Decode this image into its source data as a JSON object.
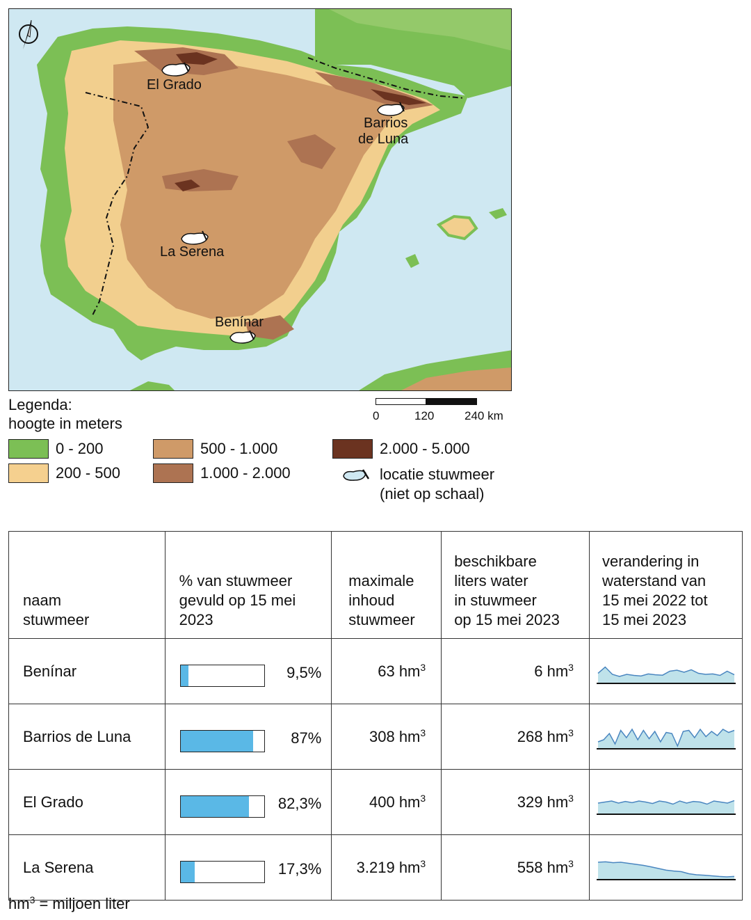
{
  "map": {
    "places": [
      "El Grado",
      "Barrios",
      "de Luna",
      "La Serena",
      "Benínar"
    ],
    "colors": {
      "sea": "#cfe8f2",
      "elev_0_200": "#7cbf55",
      "elev_200_500": "#f2cf8e",
      "elev_500_1000": "#cf9a68",
      "elev_1000_2000": "#ad7352",
      "elev_2000_5000": "#6b3320",
      "reservoir": "#ffffff"
    },
    "north_arrow": "north-arrow-icon"
  },
  "scale": {
    "l0": "0",
    "l1": "120",
    "l2": "240 km"
  },
  "legend": {
    "title": "Legenda:",
    "subtitle": "hoogte in meters",
    "items": [
      {
        "label": "0 - 200",
        "color": "#7cbf55"
      },
      {
        "label": "200 - 500",
        "color": "#f5d08f"
      },
      {
        "label": "500 - 1.000",
        "color": "#cf9a68"
      },
      {
        "label": "1.000 - 2.000",
        "color": "#ad7352"
      },
      {
        "label": "2.000 - 5.000",
        "color": "#6b3320"
      }
    ],
    "reservoir_label_1": "locatie stuwmeer",
    "reservoir_label_2": "(niet op schaal)"
  },
  "table": {
    "headers": {
      "naam": [
        "naam",
        "stuwmeer"
      ],
      "pct": [
        "% van stuwmeer",
        "gevuld op 15 mei",
        "2023"
      ],
      "max": [
        "maximale",
        "inhoud",
        "stuwmeer"
      ],
      "liters": [
        "beschikbare",
        "liters water",
        "in stuwmeer",
        "op 15 mei 2023"
      ],
      "change": [
        "verandering in",
        "waterstand van",
        "15 mei 2022 tot",
        "15 mei 2023"
      ]
    },
    "rows": [
      {
        "name": "Benínar",
        "fill": 0.095,
        "pct": "9,5%",
        "max": "63 hm",
        "liters": "6 hm",
        "sup": "3",
        "trend": [
          0.45,
          0.75,
          0.4,
          0.3,
          0.4,
          0.35,
          0.32,
          0.42,
          0.38,
          0.36,
          0.55,
          0.6,
          0.5,
          0.62,
          0.45,
          0.4,
          0.42,
          0.35,
          0.55,
          0.38
        ]
      },
      {
        "name": "Barrios de Luna",
        "fill": 0.87,
        "pct": "87%",
        "max": "308 hm",
        "liters": "268 hm",
        "sup": "3",
        "trend": [
          0.3,
          0.4,
          0.7,
          0.2,
          0.85,
          0.5,
          0.9,
          0.4,
          0.85,
          0.45,
          0.8,
          0.3,
          0.75,
          0.7,
          0.1,
          0.8,
          0.85,
          0.5,
          0.9,
          0.55,
          0.8,
          0.6,
          0.9,
          0.75,
          0.85
        ]
      },
      {
        "name": "El Grado",
        "fill": 0.823,
        "pct": "82,3%",
        "max": "400 hm",
        "liters": "329 hm",
        "sup": "3",
        "trend": [
          0.5,
          0.55,
          0.6,
          0.5,
          0.58,
          0.52,
          0.6,
          0.55,
          0.48,
          0.6,
          0.55,
          0.45,
          0.6,
          0.5,
          0.58,
          0.55,
          0.45,
          0.6,
          0.55,
          0.5,
          0.62
        ]
      },
      {
        "name": "La Serena",
        "fill": 0.173,
        "pct": "17,3%",
        "max": "3.219 hm",
        "liters": "558 hm",
        "sup": "3",
        "trend": [
          0.8,
          0.82,
          0.78,
          0.8,
          0.75,
          0.7,
          0.65,
          0.58,
          0.5,
          0.42,
          0.38,
          0.35,
          0.25,
          0.2,
          0.18,
          0.15,
          0.12,
          0.1,
          0.12
        ]
      }
    ]
  },
  "footnote": {
    "unit": "hm",
    "sup": "3",
    "rest": " = miljoen liter"
  }
}
